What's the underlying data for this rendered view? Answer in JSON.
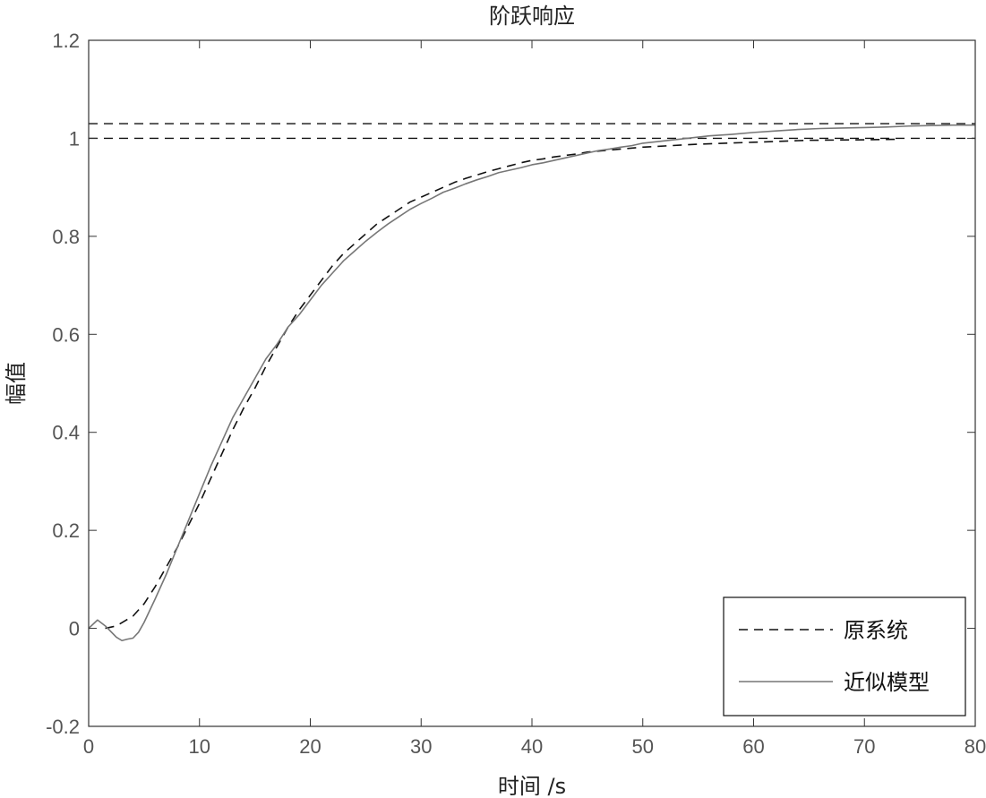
{
  "chart_data": {
    "type": "line",
    "title": "阶跃响应",
    "xlabel": "时间 /s",
    "ylabel": "幅值",
    "xlim": [
      0,
      80
    ],
    "ylim": [
      -0.2,
      1.2
    ],
    "xticks": [
      0,
      10,
      20,
      30,
      40,
      50,
      60,
      70,
      80
    ],
    "yticks": [
      -0.2,
      0,
      0.2,
      0.4,
      0.6,
      0.8,
      1,
      1.2
    ],
    "xtick_labels": [
      "0",
      "10",
      "20",
      "30",
      "40",
      "50",
      "60",
      "70",
      "80"
    ],
    "ytick_labels": [
      "-0.2",
      "0",
      "0.2",
      "0.4",
      "0.6",
      "0.8",
      "1",
      "1.2"
    ],
    "grid": false,
    "legend_position": "bottom-right",
    "reference_lines": [
      {
        "y": 1.03,
        "style": "dashed"
      },
      {
        "y": 1.0,
        "style": "dashed"
      }
    ],
    "series": [
      {
        "name": "原系统",
        "style": "dashed",
        "color": "#111111",
        "x": [
          1.5,
          2.5,
          4,
          5,
          6,
          7,
          8,
          9,
          10,
          11,
          12,
          13,
          14,
          15,
          16,
          17,
          18,
          19,
          20,
          21,
          22,
          23,
          24,
          25,
          26,
          27,
          28,
          29,
          30,
          31,
          32,
          33,
          34,
          35,
          36,
          37,
          38,
          39,
          40,
          41,
          42,
          43,
          44,
          45,
          46,
          48,
          50,
          55,
          60,
          65,
          70,
          73
        ],
        "y": [
          0.0,
          0.005,
          0.025,
          0.05,
          0.085,
          0.125,
          0.165,
          0.21,
          0.255,
          0.305,
          0.355,
          0.405,
          0.45,
          0.49,
          0.535,
          0.575,
          0.615,
          0.65,
          0.68,
          0.71,
          0.74,
          0.765,
          0.785,
          0.805,
          0.825,
          0.84,
          0.855,
          0.87,
          0.88,
          0.89,
          0.9,
          0.91,
          0.918,
          0.925,
          0.932,
          0.938,
          0.944,
          0.95,
          0.955,
          0.958,
          0.962,
          0.965,
          0.968,
          0.972,
          0.974,
          0.978,
          0.982,
          0.988,
          0.992,
          0.996,
          0.997,
          0.998
        ]
      },
      {
        "name": "近似模型",
        "style": "solid",
        "color": "#777777",
        "x": [
          0,
          0.8,
          1.5,
          2.5,
          3,
          3.5,
          4,
          4.5,
          5,
          6,
          7,
          8,
          9,
          10,
          11,
          12,
          13,
          14,
          15,
          16,
          17,
          18,
          19,
          20,
          21,
          22,
          23,
          24,
          25,
          26,
          27,
          28,
          29,
          30,
          31,
          32,
          33,
          34,
          35,
          36,
          37,
          38,
          39,
          40,
          41,
          42,
          43,
          44,
          45,
          46,
          47,
          48,
          49,
          50,
          52,
          54,
          56,
          58,
          60,
          62,
          64,
          66,
          68,
          70,
          72,
          74,
          76,
          78,
          80
        ],
        "y": [
          0.0,
          0.017,
          0.005,
          -0.018,
          -0.025,
          -0.022,
          -0.02,
          -0.008,
          0.012,
          0.06,
          0.11,
          0.165,
          0.22,
          0.275,
          0.33,
          0.38,
          0.43,
          0.47,
          0.51,
          0.55,
          0.58,
          0.615,
          0.64,
          0.67,
          0.7,
          0.725,
          0.75,
          0.77,
          0.79,
          0.808,
          0.825,
          0.84,
          0.855,
          0.867,
          0.878,
          0.89,
          0.898,
          0.907,
          0.915,
          0.922,
          0.93,
          0.935,
          0.94,
          0.946,
          0.95,
          0.955,
          0.96,
          0.965,
          0.97,
          0.975,
          0.978,
          0.982,
          0.985,
          0.99,
          0.995,
          1.0,
          1.005,
          1.008,
          1.012,
          1.015,
          1.018,
          1.02,
          1.021,
          1.022,
          1.023,
          1.025,
          1.026,
          1.027,
          1.027
        ]
      }
    ]
  }
}
